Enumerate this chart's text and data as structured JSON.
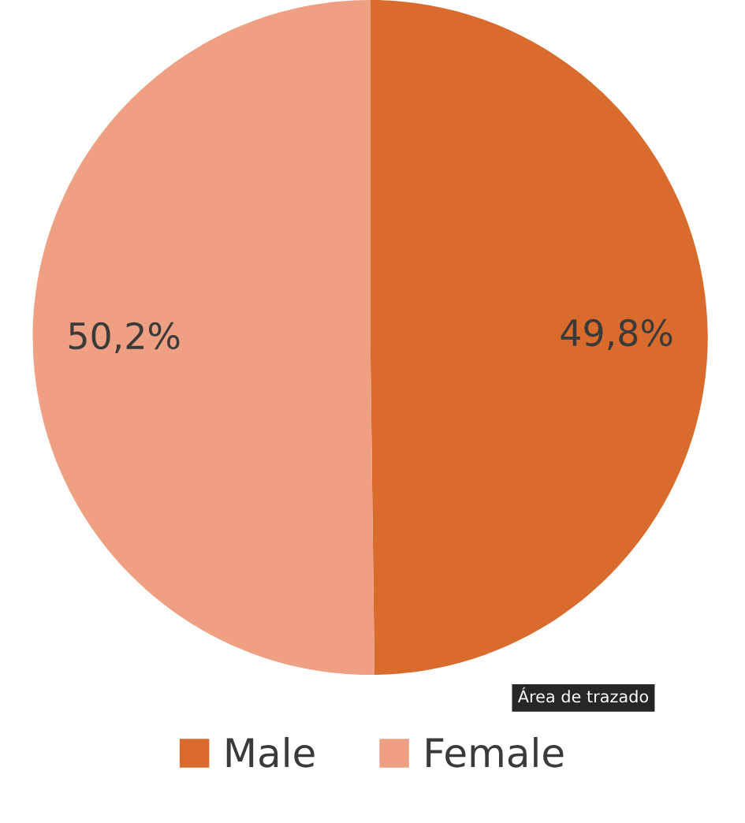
{
  "chart_data": {
    "type": "pie",
    "categories": [
      "Male",
      "Female"
    ],
    "values": [
      49.8,
      50.2
    ],
    "colors": [
      "#d96b2d",
      "#efa083"
    ],
    "value_labels": [
      "49,8%",
      "50,2%"
    ],
    "legend": "bottom",
    "annotations": [
      "Área de trazado"
    ]
  }
}
